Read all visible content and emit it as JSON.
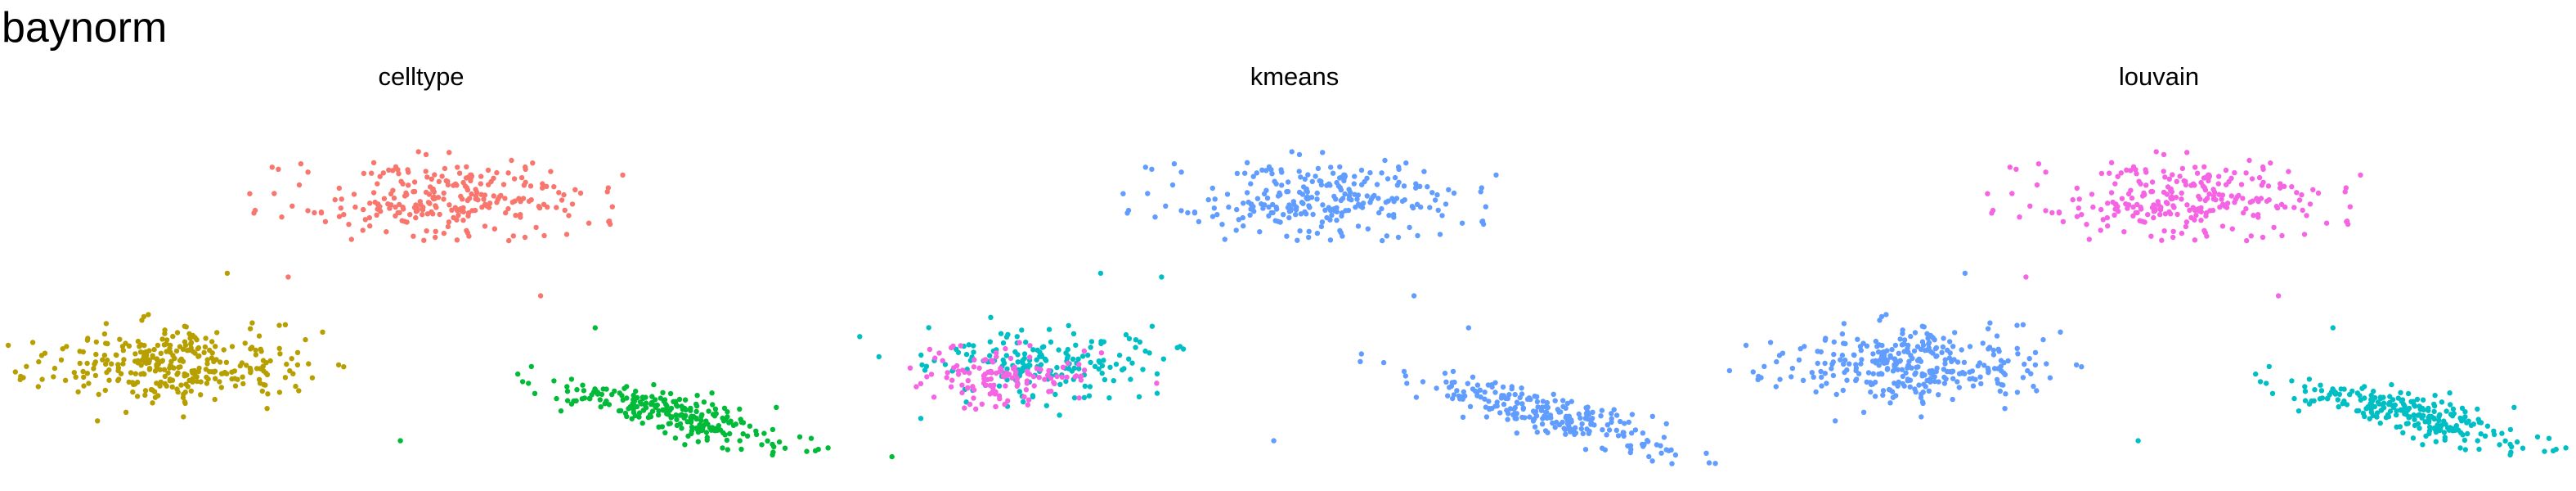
{
  "title": "baynorm",
  "colors": {
    "salmon": "#F8766D",
    "olive": "#B79F00",
    "green": "#00BA38",
    "teal": "#00BFC4",
    "blue": "#619CFF",
    "magenta": "#F564E3"
  },
  "chart_data": [
    {
      "type": "scatter",
      "title": "celltype",
      "xlim": [
        0,
        1
      ],
      "ylim": [
        0,
        1
      ],
      "grid": false,
      "axes": false,
      "clusters": [
        {
          "color": "salmon",
          "n": 260,
          "cx": 0.53,
          "cy": 0.73,
          "sx": 0.09,
          "sy": 0.05,
          "corr": 0
        },
        {
          "color": "olive",
          "n": 320,
          "cx": 0.18,
          "cy": 0.29,
          "sx": 0.08,
          "sy": 0.05,
          "corr": 0
        },
        {
          "color": "green",
          "n": 230,
          "cx": 0.81,
          "cy": 0.16,
          "sx": 0.08,
          "sy": 0.05,
          "corr": -0.85
        }
      ],
      "outliers": [
        {
          "color": "salmon",
          "x": 0.408,
          "y": 0.625
        },
        {
          "color": "salmon",
          "x": 0.329,
          "y": 0.525
        },
        {
          "color": "salmon",
          "x": 0.644,
          "y": 0.475
        },
        {
          "color": "olive",
          "x": 0.253,
          "y": 0.535
        },
        {
          "color": "olive",
          "x": 0.036,
          "y": 0.26
        },
        {
          "color": "green",
          "x": 0.712,
          "y": 0.39
        },
        {
          "color": "green",
          "x": 0.469,
          "y": 0.09
        }
      ]
    },
    {
      "type": "scatter",
      "title": "kmeans",
      "xlim": [
        0,
        1
      ],
      "ylim": [
        0,
        1
      ],
      "grid": false,
      "axes": false,
      "clusters": [
        {
          "color": "blue",
          "n": 260,
          "cx": 0.53,
          "cy": 0.73,
          "sx": 0.09,
          "sy": 0.05,
          "corr": 0
        },
        {
          "color": "teal",
          "n": 180,
          "cx": 0.18,
          "cy": 0.3,
          "sx": 0.07,
          "sy": 0.045,
          "corr": 0
        },
        {
          "color": "magenta",
          "n": 130,
          "cx": 0.13,
          "cy": 0.26,
          "sx": 0.05,
          "sy": 0.04,
          "corr": 0
        },
        {
          "color": "blue",
          "n": 230,
          "cx": 0.81,
          "cy": 0.16,
          "sx": 0.08,
          "sy": 0.05,
          "corr": -0.85
        }
      ],
      "outliers": [
        {
          "color": "blue",
          "x": 0.408,
          "y": 0.625
        },
        {
          "color": "teal",
          "x": 0.329,
          "y": 0.525
        },
        {
          "color": "blue",
          "x": 0.644,
          "y": 0.475
        },
        {
          "color": "teal",
          "x": 0.253,
          "y": 0.535
        },
        {
          "color": "magenta",
          "x": 0.036,
          "y": 0.26
        },
        {
          "color": "blue",
          "x": 0.712,
          "y": 0.39
        },
        {
          "color": "blue",
          "x": 0.469,
          "y": 0.09
        }
      ]
    },
    {
      "type": "scatter",
      "title": "louvain",
      "xlim": [
        0,
        1
      ],
      "ylim": [
        0,
        1
      ],
      "grid": false,
      "axes": false,
      "clusters": [
        {
          "color": "magenta",
          "n": 260,
          "cx": 0.53,
          "cy": 0.73,
          "sx": 0.09,
          "sy": 0.05,
          "corr": 0
        },
        {
          "color": "blue",
          "n": 320,
          "cx": 0.18,
          "cy": 0.29,
          "sx": 0.08,
          "sy": 0.05,
          "corr": 0
        },
        {
          "color": "teal",
          "n": 230,
          "cx": 0.81,
          "cy": 0.16,
          "sx": 0.08,
          "sy": 0.05,
          "corr": -0.85
        }
      ],
      "outliers": [
        {
          "color": "magenta",
          "x": 0.408,
          "y": 0.625
        },
        {
          "color": "magenta",
          "x": 0.329,
          "y": 0.525
        },
        {
          "color": "magenta",
          "x": 0.644,
          "y": 0.475
        },
        {
          "color": "blue",
          "x": 0.253,
          "y": 0.535
        },
        {
          "color": "blue",
          "x": 0.036,
          "y": 0.26
        },
        {
          "color": "teal",
          "x": 0.712,
          "y": 0.39
        },
        {
          "color": "teal",
          "x": 0.469,
          "y": 0.09
        }
      ]
    }
  ]
}
